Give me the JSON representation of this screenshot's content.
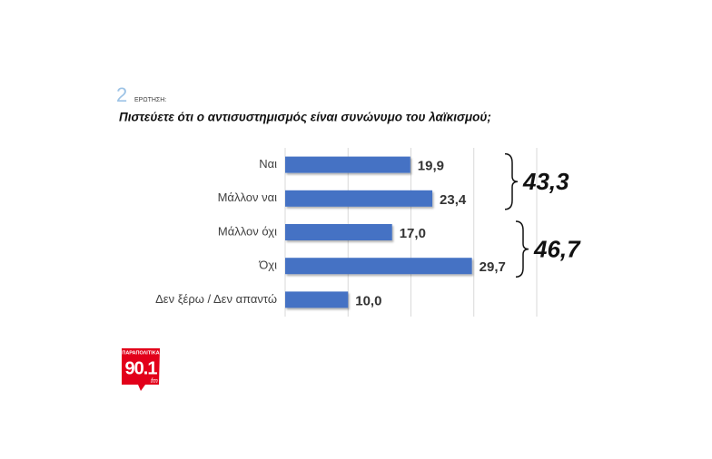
{
  "question_number": "2",
  "question_label": "ΕΡΩΤΗΣΗ:",
  "logo": {
    "top": "ΠΑΡΑΠΟΛΙΤΙΚΑ",
    "frequency": "90.1",
    "band": "fm"
  },
  "chart_data": {
    "type": "bar",
    "orientation": "horizontal",
    "title": "Πιστεύετε ότι ο αντισυστημισμός είναι συνώνυμο του λαϊκισμού;",
    "categories": [
      "Ναι",
      "Μάλλον ναι",
      "Μάλλον όχι",
      "Όχι",
      "Δεν ξέρω / Δεν απαντώ"
    ],
    "values": [
      19.9,
      23.4,
      17.0,
      29.7,
      10.0
    ],
    "value_labels": [
      "19,9",
      "23,4",
      "17,0",
      "29,7",
      "10,0"
    ],
    "color": "#4472c4",
    "xlim": [
      0,
      40
    ],
    "xticks": [
      0,
      10,
      20,
      30,
      40
    ],
    "grid": true,
    "annotations": [
      {
        "text": "43,3",
        "categories": [
          0,
          1
        ]
      },
      {
        "text": "46,7",
        "categories": [
          2,
          3
        ]
      }
    ]
  }
}
